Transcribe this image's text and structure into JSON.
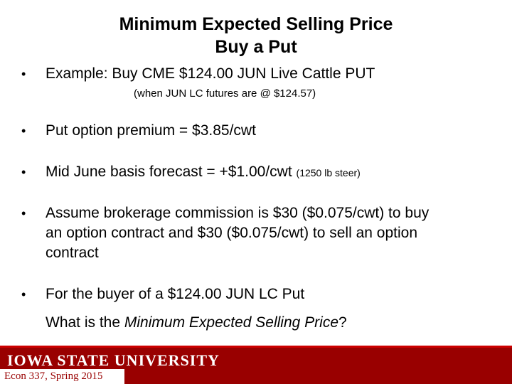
{
  "slide": {
    "title_line1": "Minimum Expected Selling Price",
    "title_line2": "Buy a Put",
    "bullet_char": "•",
    "bullets": [
      {
        "text": "Example:   Buy CME $124.00 JUN Live Cattle PUT",
        "sub": "(when JUN LC futures are @ $124.57)"
      },
      {
        "text": "Put option premium = $3.85/cwt"
      },
      {
        "text": "Mid June basis forecast = +$1.00/cwt ",
        "small": "(1250 lb steer)"
      },
      {
        "lines": [
          "Assume brokerage commission is $30 ($0.075/cwt) to buy",
          "an option contract and $30 ($0.075/cwt) to sell an option",
          "contract"
        ]
      },
      {
        "text": "For the buyer of a $124.00 JUN LC Put"
      }
    ],
    "question_prefix": "What is the ",
    "question_italic": "Minimum Expected Selling Price",
    "question_suffix": "?"
  },
  "footer": {
    "logo_text": "IOWA STATE UNIVERSITY",
    "course": "Econ 337, Spring 2015",
    "bar_color": "#990000"
  }
}
